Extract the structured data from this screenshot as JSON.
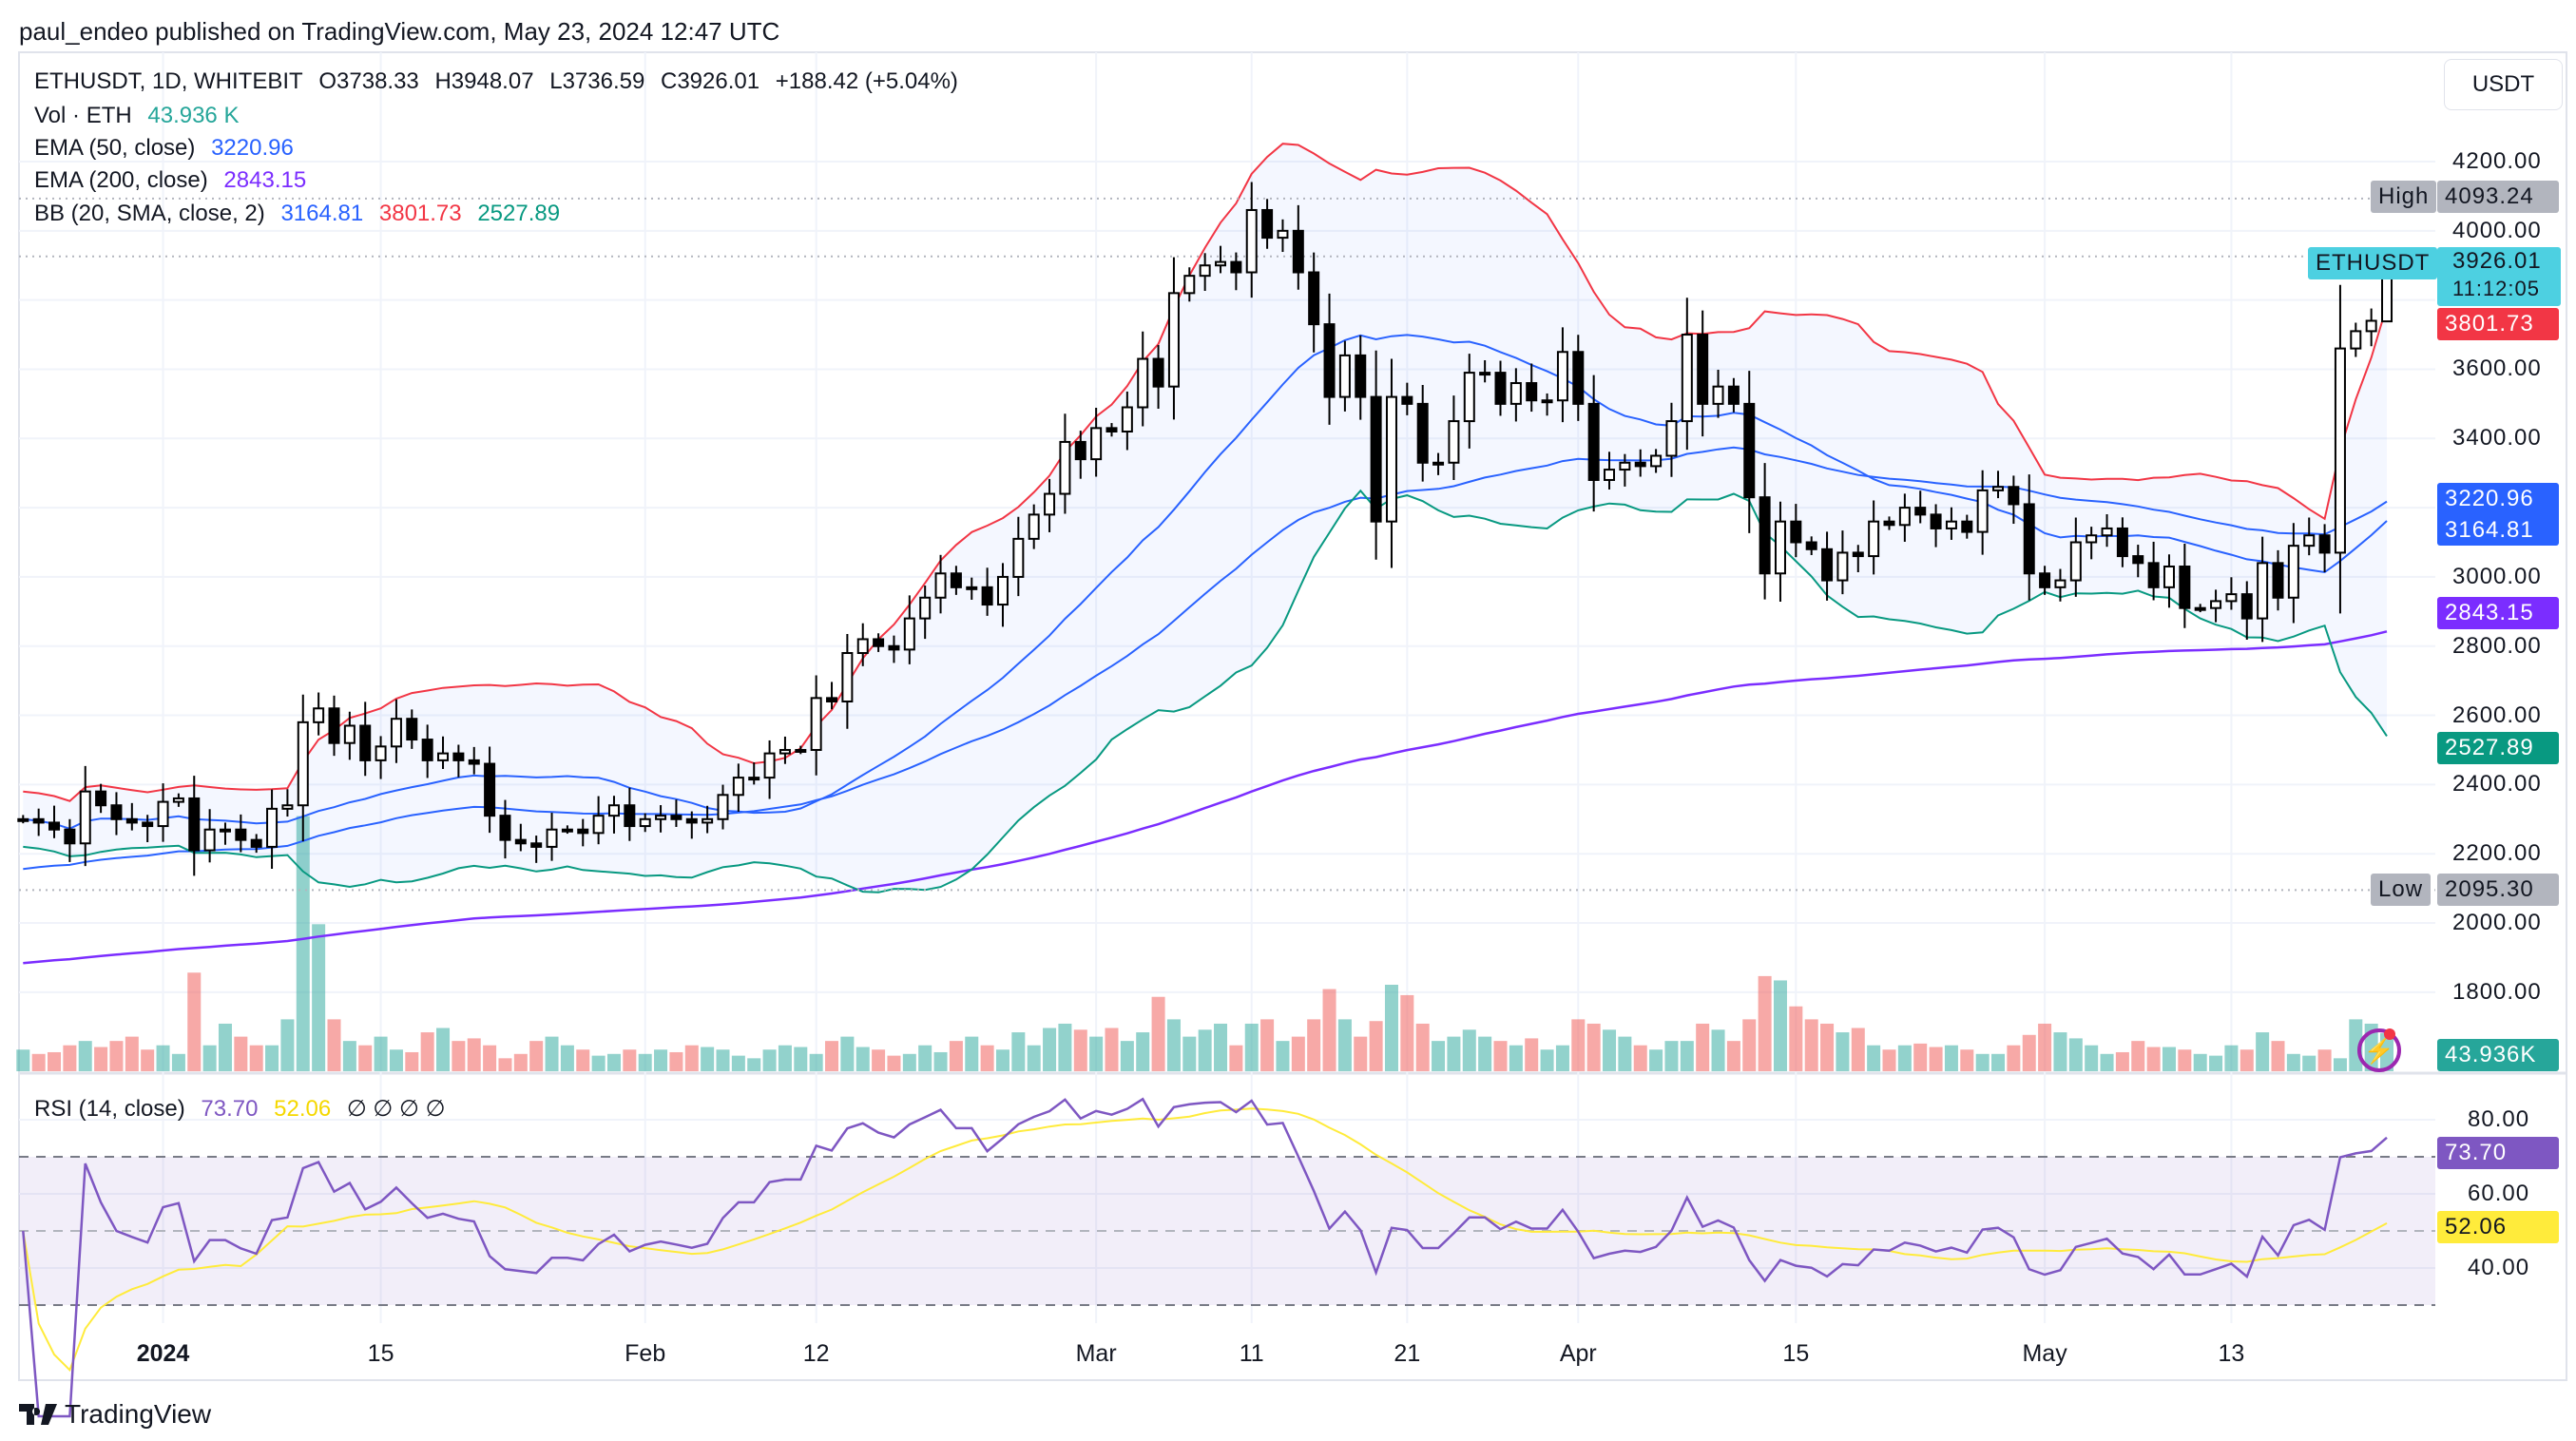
{
  "header": {
    "published": "paul_endeo published on TradingView.com, May 23, 2024 12:47 UTC"
  },
  "legend": {
    "symbol": "ETHUSDT, 1D, WHITEBIT",
    "open": "O3738.33",
    "high": "H3948.07",
    "low": "L3736.59",
    "close": "C3926.01",
    "change": "+188.42 (+5.04%)",
    "vol_label": "Vol · ETH",
    "vol_value": "43.936 K",
    "ema50_label": "EMA (50, close)",
    "ema50_value": "3220.96",
    "ema200_label": "EMA (200, close)",
    "ema200_value": "2843.15",
    "bb_label": "BB (20, SMA, close, 2)",
    "bb_basis": "3164.81",
    "bb_upper": "3801.73",
    "bb_lower": "2527.89",
    "rsi_label": "RSI (14, close)",
    "rsi_value": "73.70",
    "rsi_ma": "52.06",
    "rsi_nulls": "∅  ∅  ∅  ∅"
  },
  "price_axis": {
    "currency_button": "USDT",
    "ticks": [
      "4200.00",
      "4000.00",
      "3600.00",
      "3400.00",
      "3000.00",
      "2800.00",
      "2600.00",
      "2400.00",
      "2200.00",
      "2000.00",
      "1800.00"
    ],
    "high_label": "High",
    "high_value": "4093.24",
    "low_label": "Low",
    "low_value": "2095.30",
    "symbol_tag": "ETHUSDT",
    "last_price": "3926.01",
    "countdown": "11:12:05",
    "bb_upper_tag": "3801.73",
    "ema50_tag": "3220.96",
    "bb_basis_tag": "3164.81",
    "ema200_tag": "2843.15",
    "bb_lower_tag": "2527.89",
    "volume_tag": "43.936K"
  },
  "rsi_axis": {
    "ticks": [
      "80.00",
      "60.00",
      "40.00"
    ],
    "rsi_tag": "73.70",
    "ma_tag": "52.06"
  },
  "footer": {
    "logo": "TradingView"
  },
  "colors": {
    "up_volume": "#26a69a",
    "down_volume": "#ef5350",
    "bb_upper": "#f23645",
    "bb_lower": "#089981",
    "bb_basis": "#2962ff",
    "ema50": "#2962ff",
    "ema200": "#7b2dff",
    "rsi": "#7e57c2",
    "rsi_ma": "#ffeb3b",
    "last_price": "#4dd0e1"
  },
  "chart_data": {
    "type": "candlestick",
    "symbol": "ETHUSDT",
    "date_range": [
      "2023-12-23",
      "2024-05-23"
    ],
    "ylim": [
      1700,
      4300
    ],
    "grid": true,
    "x_ticks": [
      {
        "label": "2024",
        "date": "2024-01-01",
        "bold": true
      },
      {
        "label": "15",
        "date": "2024-01-15"
      },
      {
        "label": "Feb",
        "date": "2024-02-01"
      },
      {
        "label": "12",
        "date": "2024-02-12"
      },
      {
        "label": "Mar",
        "date": "2024-03-01"
      },
      {
        "label": "11",
        "date": "2024-03-11"
      },
      {
        "label": "21",
        "date": "2024-03-21"
      },
      {
        "label": "Apr",
        "date": "2024-04-01"
      },
      {
        "label": "15",
        "date": "2024-04-15"
      },
      {
        "label": "May",
        "date": "2024-05-01"
      },
      {
        "label": "13",
        "date": "2024-05-13"
      }
    ],
    "last_candle": {
      "open": 3738.33,
      "high": 3948.07,
      "low": 3736.59,
      "close": 3926.01
    },
    "period_high": 4093.24,
    "period_low": 2095.3,
    "closes": [
      2300,
      2290,
      2270,
      2230,
      2380,
      2340,
      2300,
      2290,
      2280,
      2350,
      2360,
      2210,
      2270,
      2270,
      2240,
      2220,
      2330,
      2340,
      2580,
      2620,
      2520,
      2570,
      2470,
      2510,
      2590,
      2530,
      2470,
      2490,
      2470,
      2460,
      2310,
      2240,
      2230,
      2220,
      2270,
      2270,
      2260,
      2310,
      2340,
      2280,
      2300,
      2310,
      2300,
      2290,
      2300,
      2370,
      2420,
      2420,
      2490,
      2500,
      2500,
      2650,
      2640,
      2780,
      2820,
      2800,
      2790,
      2880,
      2940,
      3010,
      2970,
      2970,
      2920,
      3000,
      3110,
      3180,
      3240,
      3390,
      3340,
      3430,
      3420,
      3490,
      3630,
      3550,
      3820,
      3870,
      3900,
      3910,
      3880,
      4060,
      3980,
      4000,
      3880,
      3730,
      3520,
      3640,
      3520,
      3160,
      3520,
      3500,
      3330,
      3330,
      3450,
      3590,
      3590,
      3500,
      3560,
      3510,
      3510,
      3650,
      3500,
      3280,
      3310,
      3330,
      3320,
      3350,
      3450,
      3700,
      3500,
      3550,
      3500,
      3230,
      3010,
      3160,
      3100,
      3080,
      2990,
      3070,
      3060,
      3160,
      3150,
      3200,
      3180,
      3140,
      3160,
      3130,
      3250,
      3260,
      3210,
      3010,
      2970,
      2990,
      3100,
      3120,
      3140,
      3060,
      3040,
      2970,
      3030,
      2910,
      2910,
      2930,
      2950,
      2880,
      3040,
      2940,
      3090,
      3120,
      3070,
      3660,
      3710,
      3740,
      3926.01
    ],
    "volume_k": [
      25,
      20,
      22,
      30,
      35,
      28,
      35,
      40,
      25,
      30,
      20,
      114,
      30,
      55,
      40,
      30,
      30,
      60,
      295,
      170,
      60,
      35,
      30,
      40,
      25,
      22,
      45,
      50,
      35,
      38,
      30,
      15,
      20,
      35,
      40,
      30,
      25,
      18,
      20,
      25,
      20,
      25,
      22,
      30,
      28,
      25,
      18,
      15,
      25,
      30,
      28,
      20,
      35,
      40,
      28,
      25,
      18,
      20,
      30,
      22,
      35,
      40,
      30,
      25,
      45,
      30,
      50,
      55,
      48,
      40,
      50,
      35,
      45,
      86,
      60,
      40,
      48,
      55,
      30,
      55,
      60,
      35,
      40,
      60,
      95,
      60,
      40,
      58,
      100,
      88,
      55,
      35,
      40,
      48,
      40,
      35,
      30,
      38,
      25,
      30,
      60,
      55,
      48,
      40,
      30,
      25,
      35,
      35,
      55,
      48,
      35,
      60,
      110,
      105,
      75,
      60,
      55,
      45,
      50,
      30,
      25,
      30,
      32,
      28,
      30,
      25,
      20,
      20,
      30,
      42,
      55,
      45,
      38,
      30,
      20,
      22,
      35,
      28,
      28,
      25,
      20,
      18,
      30,
      25,
      45,
      35,
      20,
      18,
      25,
      15,
      60,
      55,
      43.936
    ],
    "indicators": [
      "EMA 50",
      "EMA 200",
      "Bollinger Bands (20, 2)",
      "Volume",
      "RSI 14 with MA"
    ],
    "rsi_levels": [
      70,
      50,
      30
    ],
    "rsi_ylim": [
      25,
      90
    ]
  }
}
